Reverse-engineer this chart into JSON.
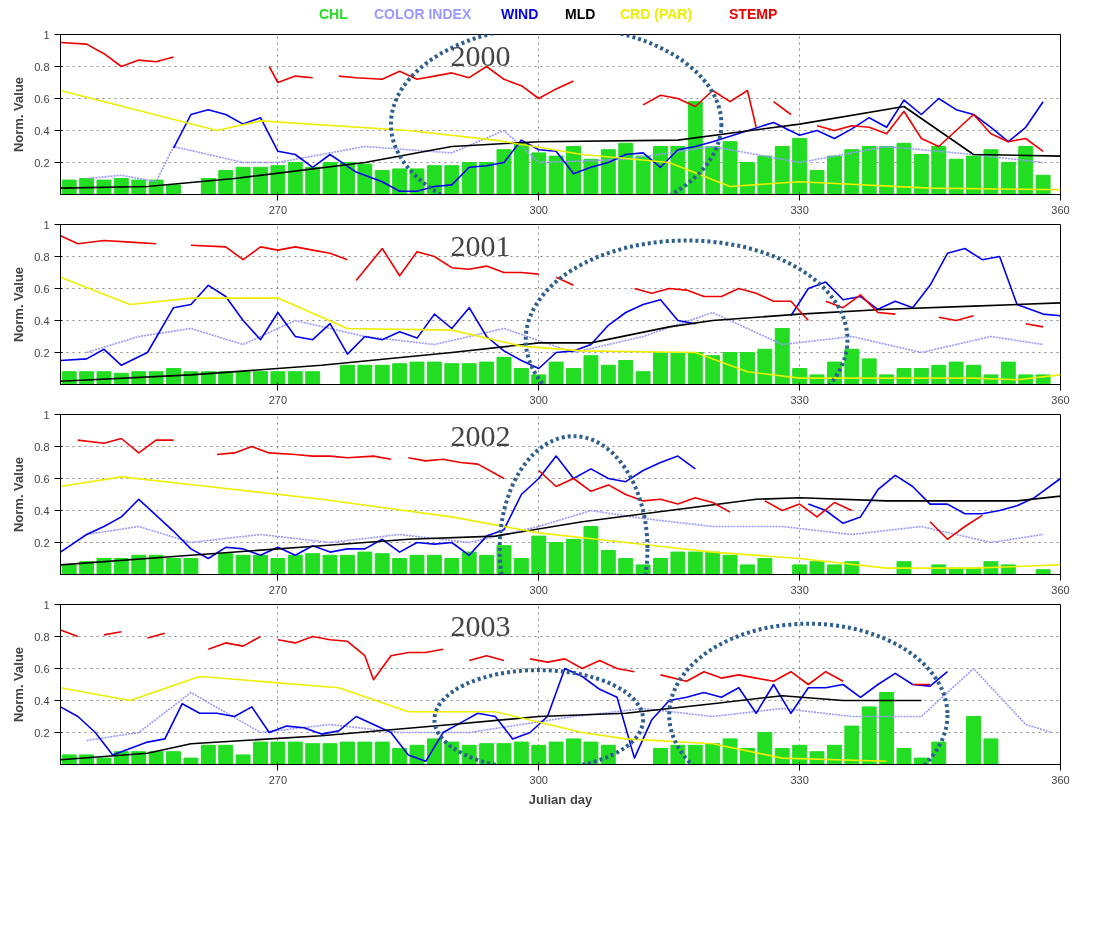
{
  "chart_data": [
    {
      "type": "bar",
      "title": "2000",
      "ylabel": "Norm. Value",
      "xlim": [
        245,
        360
      ],
      "ylim": [
        0,
        1
      ],
      "xticks": [
        270,
        300,
        330,
        360
      ],
      "yticks": [
        0.2,
        0.4,
        0.6,
        0.8,
        1
      ],
      "grid": true,
      "legend": "top",
      "series": [
        {
          "name": "COLOR INDEX",
          "type": "line",
          "line_style": "dotted",
          "color": "#9999ff",
          "x": [
            248,
            252,
            256,
            258,
            262,
            266,
            270,
            280,
            290,
            296,
            300,
            310,
            320,
            330,
            340,
            350,
            358
          ],
          "values": [
            0.1,
            0.12,
            0.08,
            0.3,
            0.25,
            0.2,
            0.2,
            0.3,
            0.26,
            0.4,
            0.2,
            0.22,
            0.3,
            0.2,
            0.3,
            0.25,
            0.2
          ]
        },
        {
          "name": "CHL",
          "color": "#22dd22",
          "x": [
            246,
            248,
            250,
            252,
            254,
            256,
            258,
            260,
            262,
            264,
            266,
            268,
            270,
            272,
            274,
            276,
            278,
            280,
            282,
            284,
            286,
            288,
            290,
            292,
            294,
            296,
            298,
            300,
            302,
            304,
            306,
            308,
            310,
            312,
            314,
            316,
            318,
            320,
            322,
            324,
            326,
            328,
            330,
            332,
            334,
            336,
            338,
            340,
            342,
            344,
            346,
            348,
            350,
            352,
            354,
            356,
            358
          ],
          "values": [
            0.09,
            0.1,
            0.09,
            0.1,
            0.09,
            0.09,
            0.06,
            null,
            0.1,
            0.15,
            0.17,
            0.17,
            0.18,
            0.2,
            0.17,
            0.2,
            0.2,
            0.19,
            0.15,
            0.16,
            0.16,
            0.18,
            0.18,
            0.2,
            0.2,
            0.28,
            0.32,
            0.26,
            0.24,
            0.3,
            0.22,
            0.28,
            0.32,
            0.24,
            0.3,
            0.3,
            0.58,
            0.3,
            0.33,
            0.2,
            0.24,
            0.3,
            0.35,
            0.15,
            0.24,
            0.28,
            0.3,
            0.3,
            0.32,
            0.25,
            0.3,
            0.22,
            0.24,
            0.28,
            0.2,
            0.3,
            0.12
          ]
        },
        {
          "name": "WIND",
          "type": "line",
          "color": "#0000ee",
          "x": [
            258,
            260,
            262,
            264,
            266,
            268,
            270,
            272,
            274,
            276,
            279,
            282,
            284,
            286,
            288,
            290,
            292,
            294,
            296,
            298,
            300,
            302,
            304,
            306,
            308,
            310,
            312,
            314,
            316,
            318,
            320,
            327,
            330,
            332,
            334,
            336,
            338,
            340,
            342,
            344,
            346,
            348,
            350,
            352,
            354,
            356,
            358
          ],
          "values": [
            0.29,
            0.5,
            0.53,
            0.5,
            0.44,
            0.48,
            0.27,
            0.25,
            0.17,
            0.25,
            0.14,
            0.08,
            0.02,
            0.02,
            0.05,
            0.06,
            0.17,
            0.18,
            0.2,
            0.34,
            0.28,
            0.27,
            0.13,
            0.17,
            0.2,
            0.25,
            0.26,
            0.17,
            0.28,
            0.3,
            0.33,
            0.45,
            0.37,
            0.4,
            0.35,
            0.41,
            0.48,
            0.42,
            0.59,
            0.5,
            0.6,
            0.53,
            0.5,
            0.42,
            0.33,
            0.42,
            0.58
          ]
        },
        {
          "name": "MLD",
          "type": "line",
          "color": "#000000",
          "x": [
            245,
            255,
            265,
            280,
            290,
            300,
            316,
            330,
            342,
            346,
            350,
            360
          ],
          "values": [
            0.04,
            0.05,
            0.1,
            0.2,
            0.3,
            0.33,
            0.34,
            0.44,
            0.55,
            0.4,
            0.25,
            0.24
          ]
        },
        {
          "name": "CRD (PAR)",
          "type": "line",
          "color": "#eeee00",
          "x": [
            245,
            263,
            268,
            285,
            295,
            305,
            315,
            322,
            330,
            345,
            360
          ],
          "values": [
            0.65,
            0.4,
            0.46,
            0.4,
            0.34,
            0.25,
            0.2,
            0.05,
            0.08,
            0.04,
            0.03
          ]
        },
        {
          "name": "STEMP",
          "type": "line",
          "color": "#ee0000",
          "x": [
            245,
            248,
            250,
            252,
            254,
            256,
            258,
            263,
            269,
            270,
            272,
            274,
            276,
            277,
            279,
            282,
            284,
            286,
            288,
            290,
            292,
            294,
            296,
            298,
            300,
            302,
            304,
            308,
            312,
            314,
            316,
            318,
            320,
            322,
            324,
            325,
            326,
            327,
            329,
            330,
            332,
            334,
            336,
            338,
            340,
            342,
            344,
            346,
            348,
            350,
            352,
            354,
            356,
            358
          ],
          "values": [
            0.95,
            0.94,
            0.88,
            0.8,
            0.84,
            0.83,
            0.86,
            null,
            0.8,
            0.7,
            0.74,
            0.73,
            null,
            0.74,
            0.73,
            0.72,
            0.77,
            0.72,
            0.74,
            0.76,
            0.73,
            0.8,
            0.72,
            0.68,
            0.6,
            0.66,
            0.71,
            null,
            0.56,
            0.62,
            0.6,
            0.55,
            0.65,
            0.58,
            0.65,
            0.42,
            null,
            0.58,
            0.5,
            null,
            0.43,
            0.4,
            0.43,
            0.42,
            0.38,
            0.52,
            0.35,
            0.3,
            0.4,
            0.5,
            0.38,
            0.33,
            0.35,
            0.27
          ]
        }
      ]
    },
    {
      "type": "bar",
      "title": "2001",
      "ylabel": "Norm. Value",
      "xlim": [
        245,
        360
      ],
      "ylim": [
        0,
        1
      ],
      "xticks": [
        270,
        300,
        330,
        360
      ],
      "yticks": [
        0.2,
        0.4,
        0.6,
        0.8,
        1
      ],
      "grid": true,
      "series": [
        {
          "type": "line",
          "line_style": "dotted",
          "color": "#9999ff",
          "x": [
            248,
            254,
            260,
            266,
            272,
            280,
            288,
            296,
            304,
            312,
            320,
            328,
            336,
            344,
            352,
            358
          ],
          "values": [
            0.2,
            0.3,
            0.35,
            0.25,
            0.4,
            0.3,
            0.25,
            0.35,
            0.2,
            0.3,
            0.45,
            0.25,
            0.3,
            0.2,
            0.3,
            0.25
          ]
        },
        {
          "color": "#22dd22",
          "x": [
            246,
            248,
            250,
            252,
            254,
            256,
            258,
            260,
            262,
            264,
            266,
            268,
            270,
            272,
            274,
            276,
            278,
            280,
            282,
            284,
            286,
            288,
            290,
            292,
            294,
            296,
            298,
            300,
            302,
            304,
            306,
            308,
            310,
            312,
            314,
            316,
            318,
            320,
            322,
            324,
            326,
            328,
            330,
            332,
            334,
            336,
            338,
            340,
            342,
            344,
            346,
            348,
            350,
            352,
            354,
            356,
            358
          ],
          "values": [
            0.08,
            0.08,
            0.08,
            0.07,
            0.08,
            0.08,
            0.1,
            0.08,
            0.08,
            0.08,
            0.08,
            0.08,
            0.08,
            0.08,
            0.08,
            null,
            0.12,
            0.12,
            0.12,
            0.13,
            0.14,
            0.14,
            0.13,
            0.13,
            0.14,
            0.17,
            0.1,
            0.06,
            0.14,
            0.1,
            0.18,
            0.12,
            0.15,
            0.08,
            0.2,
            0.2,
            0.2,
            0.18,
            0.2,
            0.2,
            0.22,
            0.35,
            0.1,
            0.06,
            0.14,
            0.22,
            0.16,
            0.06,
            0.1,
            0.1,
            0.12,
            0.14,
            0.12,
            0.06,
            0.14,
            0.06,
            0.06
          ]
        },
        {
          "type": "line",
          "color": "#0000ee",
          "x": [
            245,
            248,
            250,
            252,
            255,
            258,
            260,
            262,
            264,
            266,
            268,
            270,
            272,
            274,
            276,
            278,
            280,
            282,
            284,
            286,
            288,
            290,
            292,
            294,
            296,
            298,
            300,
            302,
            304,
            306,
            308,
            310,
            312,
            314,
            316,
            318,
            324,
            329,
            331,
            333,
            335,
            337,
            339,
            341,
            343,
            345,
            347,
            349,
            351,
            353,
            355,
            358,
            360
          ],
          "values": [
            0.15,
            0.16,
            0.22,
            0.12,
            0.2,
            0.48,
            0.5,
            0.62,
            0.55,
            0.4,
            0.28,
            0.45,
            0.3,
            0.28,
            0.38,
            0.19,
            0.3,
            0.28,
            0.33,
            0.29,
            0.44,
            0.35,
            0.48,
            0.3,
            0.21,
            0.15,
            0.1,
            0.2,
            0.21,
            0.25,
            0.37,
            0.45,
            0.5,
            0.53,
            0.4,
            0.38,
            null,
            0.43,
            0.6,
            0.64,
            0.53,
            0.55,
            0.47,
            0.52,
            0.48,
            0.62,
            0.82,
            0.85,
            0.78,
            0.8,
            0.5,
            0.44,
            0.43
          ]
        },
        {
          "type": "line",
          "color": "#000000",
          "x": [
            245,
            260,
            275,
            290,
            300,
            306,
            315,
            320,
            330,
            340,
            350,
            360
          ],
          "values": [
            0.02,
            0.06,
            0.12,
            0.2,
            0.26,
            0.26,
            0.36,
            0.4,
            0.44,
            0.47,
            0.49,
            0.51
          ]
        },
        {
          "type": "line",
          "color": "#eeee00",
          "x": [
            245,
            253,
            260,
            270,
            278,
            290,
            298,
            305,
            318,
            324,
            330,
            350,
            355,
            360
          ],
          "values": [
            0.67,
            0.5,
            0.54,
            0.54,
            0.35,
            0.34,
            0.24,
            0.21,
            0.2,
            0.08,
            0.04,
            0.04,
            0.03,
            0.06
          ]
        },
        {
          "type": "line",
          "color": "#ee0000",
          "x": [
            245,
            247,
            250,
            253,
            256,
            258,
            260,
            264,
            266,
            268,
            270,
            272,
            274,
            276,
            278,
            278.5,
            279,
            282,
            284,
            286,
            288,
            290,
            292,
            294,
            296,
            298,
            300,
            301,
            302,
            304,
            308,
            311,
            313,
            315,
            317,
            319,
            321,
            323,
            325,
            327,
            329,
            331,
            332,
            333,
            335,
            337,
            339,
            341,
            344,
            346,
            348,
            350,
            353,
            356,
            358
          ],
          "values": [
            0.93,
            0.88,
            0.9,
            0.89,
            0.88,
            null,
            0.87,
            0.86,
            0.78,
            0.86,
            0.84,
            0.86,
            0.84,
            0.82,
            0.78,
            null,
            0.65,
            0.85,
            0.68,
            0.83,
            0.8,
            0.73,
            0.72,
            0.74,
            0.7,
            0.7,
            0.69,
            null,
            0.67,
            0.62,
            null,
            0.6,
            0.57,
            0.6,
            0.59,
            0.55,
            0.55,
            0.6,
            0.57,
            0.52,
            0.52,
            0.4,
            null,
            0.52,
            0.48,
            0.56,
            0.45,
            0.44,
            null,
            0.42,
            0.4,
            0.43,
            null,
            0.38,
            0.36
          ]
        }
      ]
    },
    {
      "type": "bar",
      "title": "2002",
      "ylabel": "Norm. Value",
      "xlim": [
        245,
        360
      ],
      "ylim": [
        0,
        1
      ],
      "xticks": [
        270,
        300,
        330,
        360
      ],
      "yticks": [
        0.2,
        0.4,
        0.6,
        0.8,
        1
      ],
      "grid": true,
      "series": [
        {
          "type": "line",
          "line_style": "dotted",
          "color": "#9999ff",
          "x": [
            248,
            254,
            260,
            268,
            276,
            284,
            292,
            300,
            306,
            312,
            320,
            328,
            336,
            344,
            352,
            358
          ],
          "values": [
            0.25,
            0.3,
            0.2,
            0.25,
            0.2,
            0.25,
            0.2,
            0.3,
            0.4,
            0.35,
            0.3,
            0.3,
            0.25,
            0.3,
            0.2,
            0.25
          ]
        },
        {
          "color": "#22dd22",
          "x": [
            246,
            248,
            250,
            252,
            254,
            256,
            258,
            260,
            262,
            264,
            266,
            268,
            270,
            272,
            274,
            276,
            278,
            280,
            282,
            284,
            286,
            288,
            290,
            292,
            294,
            296,
            298,
            300,
            302,
            304,
            306,
            308,
            310,
            312,
            314,
            316,
            318,
            320,
            322,
            324,
            326,
            328,
            330,
            332,
            334,
            336,
            338,
            340,
            342,
            344,
            346,
            348,
            350,
            352,
            354,
            356,
            358
          ],
          "values": [
            0.06,
            0.08,
            0.1,
            0.1,
            0.12,
            0.12,
            0.1,
            0.1,
            null,
            0.13,
            0.12,
            0.12,
            0.1,
            0.12,
            0.13,
            0.12,
            0.12,
            0.14,
            0.13,
            0.1,
            0.12,
            0.12,
            0.1,
            0.14,
            0.12,
            0.18,
            0.1,
            0.24,
            0.2,
            0.22,
            0.3,
            0.15,
            0.1,
            0.06,
            0.1,
            0.14,
            0.14,
            0.14,
            0.12,
            0.06,
            0.1,
            null,
            0.06,
            0.08,
            0.06,
            0.08,
            null,
            null,
            0.08,
            null,
            0.06,
            0.04,
            0.04,
            0.08,
            0.06,
            null,
            0.03
          ]
        },
        {
          "type": "line",
          "color": "#0000ee",
          "x": [
            245,
            248,
            250,
            252,
            254,
            256,
            258,
            260,
            262,
            264,
            266,
            268,
            270,
            272,
            274,
            276,
            278,
            280,
            282,
            284,
            286,
            288,
            290,
            292,
            294,
            296,
            298,
            300,
            302,
            304,
            306,
            308,
            310,
            312,
            314,
            316,
            318,
            325,
            331,
            333,
            335,
            337,
            339,
            341,
            343,
            345,
            347,
            349,
            351,
            353,
            355,
            357,
            360
          ],
          "values": [
            0.14,
            0.25,
            0.3,
            0.36,
            0.47,
            0.37,
            0.27,
            0.16,
            0.1,
            0.17,
            0.16,
            0.12,
            0.17,
            0.12,
            0.18,
            0.14,
            0.16,
            0.16,
            0.22,
            0.14,
            0.2,
            0.19,
            0.2,
            0.12,
            0.24,
            0.28,
            0.5,
            0.6,
            0.74,
            0.6,
            0.66,
            0.6,
            0.58,
            0.65,
            0.7,
            0.74,
            0.66,
            null,
            0.44,
            0.4,
            0.32,
            0.36,
            0.53,
            0.62,
            0.55,
            0.44,
            0.44,
            0.38,
            0.38,
            0.4,
            0.43,
            0.48,
            0.6
          ]
        },
        {
          "type": "line",
          "color": "#000000",
          "x": [
            245,
            260,
            275,
            285,
            295,
            305,
            315,
            325,
            330,
            340,
            355,
            360
          ],
          "values": [
            0.06,
            0.12,
            0.18,
            0.22,
            0.24,
            0.33,
            0.4,
            0.47,
            0.48,
            0.46,
            0.46,
            0.49
          ]
        },
        {
          "type": "line",
          "color": "#eeee00",
          "x": [
            245,
            252,
            262,
            275,
            290,
            300,
            310,
            320,
            330,
            340,
            350,
            360
          ],
          "values": [
            0.55,
            0.61,
            0.55,
            0.47,
            0.36,
            0.26,
            0.2,
            0.14,
            0.1,
            0.04,
            0.04,
            0.06
          ]
        },
        {
          "type": "line",
          "color": "#ee0000",
          "x": [
            247,
            250,
            252,
            254,
            256,
            258,
            260,
            263,
            265,
            267,
            269,
            272,
            274,
            276,
            278,
            281,
            283,
            284,
            285,
            287,
            289,
            291,
            293,
            296,
            298,
            300,
            302,
            304,
            306,
            308,
            310,
            312,
            314,
            316,
            318,
            320,
            322,
            324,
            326,
            328,
            330,
            332,
            334,
            336,
            340,
            345,
            347,
            349,
            351
          ],
          "values": [
            0.84,
            0.82,
            0.85,
            0.76,
            0.84,
            0.84,
            null,
            0.75,
            0.76,
            0.8,
            0.76,
            0.75,
            0.74,
            0.74,
            0.73,
            0.74,
            0.72,
            null,
            0.73,
            0.71,
            0.72,
            0.7,
            0.69,
            0.6,
            null,
            0.65,
            0.55,
            0.6,
            0.52,
            0.56,
            0.5,
            0.46,
            0.47,
            0.44,
            0.48,
            0.45,
            0.39,
            null,
            0.46,
            0.4,
            0.44,
            0.36,
            0.45,
            0.4,
            null,
            0.33,
            0.22,
            0.3,
            0.37
          ]
        }
      ]
    },
    {
      "type": "bar",
      "title": "2003",
      "xlabel": "Julian day",
      "ylabel": "Norm. Value",
      "xlim": [
        245,
        360
      ],
      "ylim": [
        0,
        1
      ],
      "xticks": [
        270,
        300,
        330,
        360
      ],
      "yticks": [
        0.2,
        0.4,
        0.6,
        0.8,
        1
      ],
      "grid": true,
      "series": [
        {
          "type": "line",
          "line_style": "dotted",
          "color": "#9999ff",
          "x": [
            248,
            254,
            260,
            268,
            276,
            284,
            292,
            298,
            304,
            312,
            320,
            328,
            336,
            344,
            350,
            356,
            359
          ],
          "values": [
            0.15,
            0.2,
            0.45,
            0.2,
            0.25,
            0.2,
            0.2,
            0.25,
            0.3,
            0.35,
            0.3,
            0.35,
            0.3,
            0.3,
            0.6,
            0.25,
            0.2
          ]
        },
        {
          "color": "#22dd22",
          "x": [
            246,
            248,
            250,
            252,
            254,
            256,
            258,
            260,
            262,
            264,
            266,
            268,
            270,
            272,
            274,
            276,
            278,
            280,
            282,
            284,
            286,
            288,
            290,
            292,
            294,
            296,
            298,
            300,
            302,
            304,
            306,
            308,
            310,
            312,
            314,
            316,
            318,
            320,
            322,
            324,
            326,
            328,
            330,
            332,
            334,
            336,
            338,
            340,
            342,
            344,
            346,
            348,
            350,
            352
          ],
          "values": [
            0.06,
            0.06,
            0.04,
            0.08,
            0.08,
            0.08,
            0.08,
            0.04,
            0.12,
            0.12,
            0.06,
            0.14,
            0.14,
            0.14,
            0.13,
            0.13,
            0.14,
            0.14,
            0.14,
            0.1,
            0.12,
            0.16,
            0.14,
            0.12,
            0.13,
            0.13,
            0.14,
            0.12,
            0.14,
            0.16,
            0.14,
            0.12,
            null,
            null,
            0.1,
            0.12,
            0.12,
            0.13,
            0.16,
            0.1,
            0.2,
            0.1,
            0.12,
            0.08,
            0.12,
            0.24,
            0.36,
            0.45,
            0.1,
            0.04,
            0.14,
            null,
            0.3,
            0.16
          ]
        },
        {
          "type": "line",
          "color": "#0000ee",
          "x": [
            245,
            247,
            249,
            251,
            253,
            255,
            257,
            259,
            261,
            263,
            265,
            267,
            269,
            271,
            273,
            275,
            277,
            279,
            281,
            283,
            285,
            287,
            289,
            291,
            293,
            295,
            297,
            299,
            301,
            303,
            305,
            307,
            309,
            311,
            313,
            315,
            317,
            319,
            321,
            323,
            325,
            327,
            329,
            331,
            333,
            335,
            337,
            339,
            341,
            343,
            345,
            347
          ],
          "values": [
            0.36,
            0.3,
            0.2,
            0.06,
            0.1,
            0.14,
            0.16,
            0.38,
            0.32,
            0.32,
            0.3,
            0.36,
            0.2,
            0.24,
            0.23,
            0.19,
            0.21,
            0.3,
            0.25,
            0.2,
            0.06,
            0.02,
            0.2,
            0.26,
            0.32,
            0.3,
            0.16,
            0.2,
            0.3,
            0.6,
            0.55,
            0.47,
            0.42,
            0.04,
            0.28,
            0.4,
            0.42,
            0.45,
            0.42,
            0.48,
            0.32,
            0.5,
            0.32,
            0.48,
            0.48,
            0.5,
            0.42,
            0.5,
            0.57,
            0.5,
            0.49,
            0.58
          ]
        },
        {
          "type": "line",
          "color": "#000000",
          "x": [
            245,
            255,
            260,
            275,
            290,
            300,
            310,
            320,
            328,
            335,
            344
          ],
          "values": [
            0.03,
            0.07,
            0.13,
            0.18,
            0.25,
            0.3,
            0.32,
            0.38,
            0.43,
            0.4,
            0.4
          ]
        },
        {
          "type": "line",
          "color": "#eeee00",
          "x": [
            245,
            253,
            261,
            277,
            285,
            295,
            305,
            310,
            320,
            328,
            340
          ],
          "values": [
            0.48,
            0.4,
            0.55,
            0.48,
            0.33,
            0.33,
            0.2,
            0.16,
            0.13,
            0.04,
            0.02
          ]
        },
        {
          "type": "line",
          "color": "#ee0000",
          "x": [
            245,
            247,
            248,
            250,
            252,
            253,
            255,
            257,
            259,
            262,
            264,
            266,
            268,
            269,
            270,
            272,
            274,
            276,
            278,
            280,
            281,
            283,
            285,
            287,
            289,
            290,
            292,
            294,
            296,
            297,
            299,
            301,
            303,
            305,
            307,
            309,
            311,
            312,
            314,
            317,
            319,
            321,
            323,
            325,
            327,
            329,
            331,
            333,
            335,
            339,
            343,
            345
          ],
          "values": [
            0.84,
            0.8,
            null,
            0.81,
            0.83,
            null,
            0.79,
            0.82,
            null,
            0.72,
            0.76,
            0.74,
            0.8,
            null,
            0.78,
            0.76,
            0.8,
            0.78,
            0.77,
            0.68,
            0.53,
            0.68,
            0.7,
            0.7,
            0.72,
            null,
            0.65,
            0.68,
            0.65,
            null,
            0.66,
            0.64,
            0.66,
            0.6,
            0.65,
            0.6,
            0.58,
            null,
            0.56,
            0.52,
            0.58,
            0.54,
            0.56,
            0.54,
            0.52,
            0.58,
            0.5,
            0.58,
            0.52,
            null,
            0.5,
            0.5
          ]
        }
      ]
    }
  ]
}
